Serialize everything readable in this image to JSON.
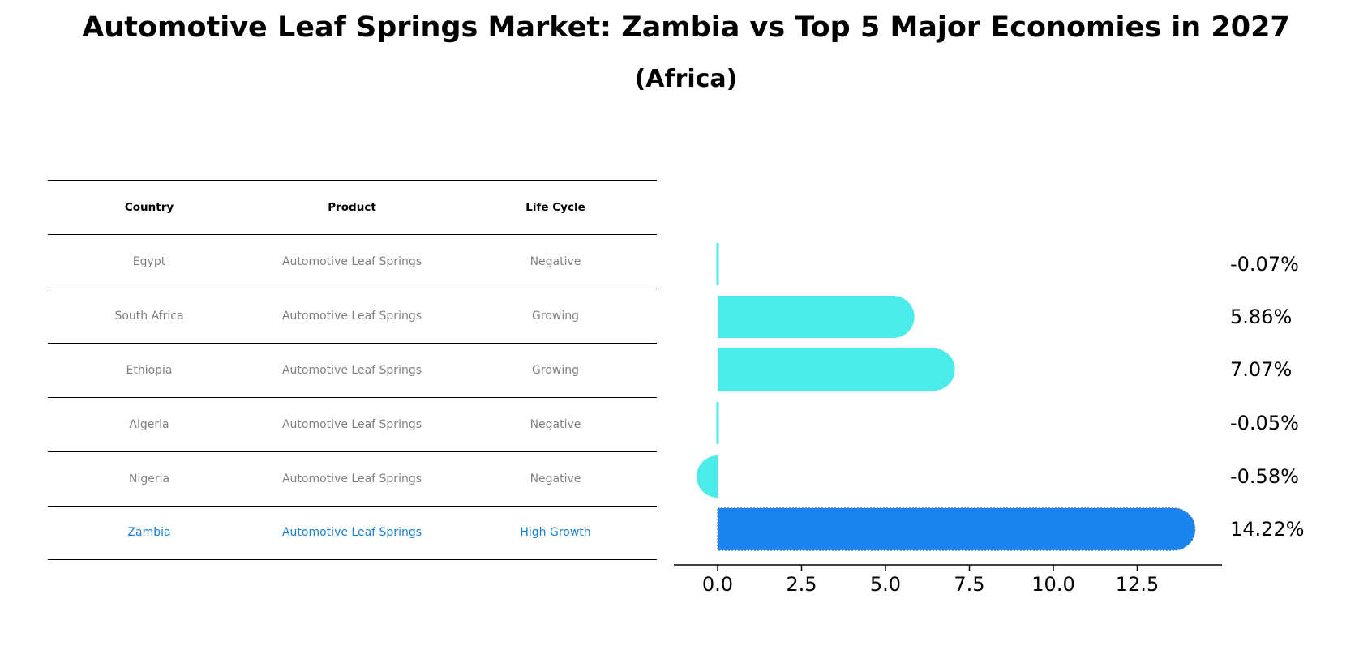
{
  "title": "Automotive Leaf Springs Market: Zambia vs Top 5 Major Economies in 2027",
  "subtitle": "(Africa)",
  "table": {
    "headers": [
      "Country",
      "Product",
      "Life Cycle"
    ],
    "rows": [
      {
        "country": "Egypt",
        "product": "Automotive Leaf Springs",
        "life_cycle": "Negative",
        "highlight": false
      },
      {
        "country": "South Africa",
        "product": "Automotive Leaf Springs",
        "life_cycle": "Growing",
        "highlight": false
      },
      {
        "country": "Ethiopia",
        "product": "Automotive Leaf Springs",
        "life_cycle": "Growing",
        "highlight": false
      },
      {
        "country": "Algeria",
        "product": "Automotive Leaf Springs",
        "life_cycle": "Negative",
        "highlight": false
      },
      {
        "country": "Nigeria",
        "product": "Automotive Leaf Springs",
        "life_cycle": "Negative",
        "highlight": false
      },
      {
        "country": "Zambia",
        "product": "Automotive Leaf Springs",
        "life_cycle": "High Growth",
        "highlight": true
      }
    ]
  },
  "chart_data": {
    "type": "bar",
    "orientation": "horizontal",
    "categories": [
      "Egypt",
      "South Africa",
      "Ethiopia",
      "Algeria",
      "Nigeria",
      "Zambia"
    ],
    "values": [
      -0.07,
      5.86,
      7.07,
      -0.05,
      -0.58,
      14.22
    ],
    "value_labels": [
      "-0.07%",
      "5.86%",
      "7.07%",
      "-0.05%",
      "-0.58%",
      "14.22%"
    ],
    "xticks": [
      0.0,
      2.5,
      5.0,
      7.5,
      10.0,
      12.5
    ],
    "xtick_labels": [
      "0.0",
      "2.5",
      "5.0",
      "7.5",
      "10.0",
      "12.5"
    ],
    "xlim": [
      -1.35,
      15.0
    ],
    "xlabel": "",
    "ylabel": "",
    "grid": false,
    "highlight_category": "Zambia",
    "colors": {
      "default": "#4bebeb",
      "highlight": "#1a85f0",
      "table_highlight_text": "#1a7fd0",
      "table_text": "#808080"
    }
  }
}
